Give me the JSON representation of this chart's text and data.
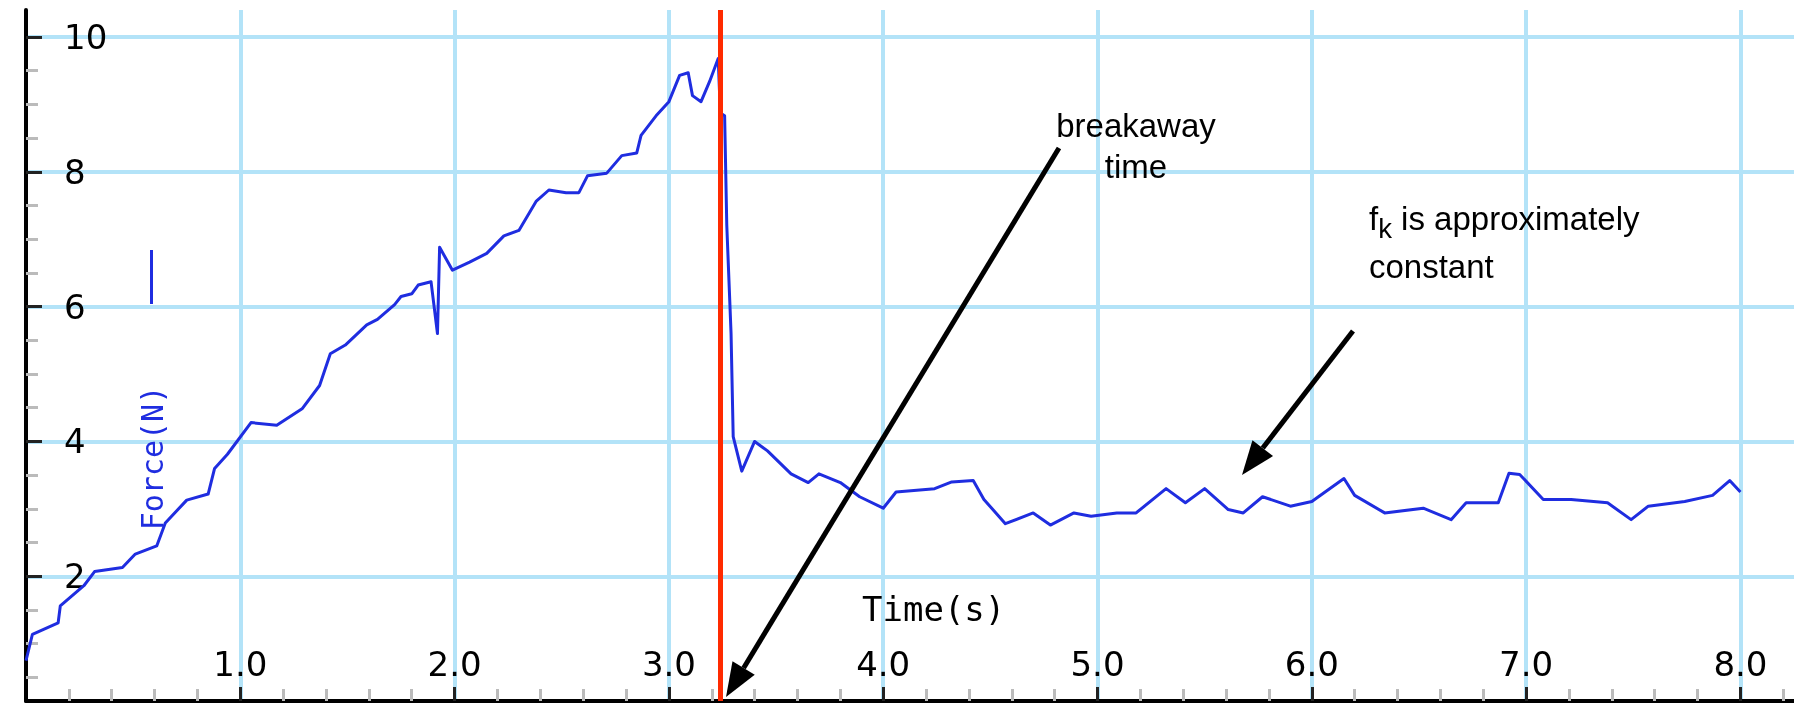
{
  "chart_data": {
    "type": "line",
    "xlabel": "Time(s)",
    "ylabel": "Force(N)",
    "color": "#1f2de0",
    "x": [
      0,
      0.03,
      0.15,
      0.16,
      0.27,
      0.32,
      0.45,
      0.51,
      0.61,
      0.65,
      0.75,
      0.85,
      0.88,
      0.94,
      1.05,
      1.17,
      1.29,
      1.37,
      1.42,
      1.49,
      1.59,
      1.64,
      1.72,
      1.75,
      1.8,
      1.83,
      1.89,
      1.92,
      1.93,
      1.99,
      2.07,
      2.15,
      2.23,
      2.3,
      2.38,
      2.44,
      2.52,
      2.58,
      2.62,
      2.71,
      2.78,
      2.85,
      2.87,
      2.94,
      3,
      3.05,
      3.09,
      3.11,
      3.15,
      3.19,
      3.23,
      3.24,
      3.26,
      3.27,
      3.29,
      3.3,
      3.34,
      3.4,
      3.46,
      3.57,
      3.65,
      3.7,
      3.8,
      3.89,
      4,
      4.06,
      4.24,
      4.32,
      4.42,
      4.47,
      4.57,
      4.7,
      4.78,
      4.89,
      4.97,
      5.09,
      5.18,
      5.32,
      5.41,
      5.5,
      5.61,
      5.68,
      5.77,
      5.9,
      6,
      6.15,
      6.2,
      6.34,
      6.52,
      6.65,
      6.72,
      6.87,
      6.92,
      6.97,
      7.08,
      7.21,
      7.38,
      7.49,
      7.57,
      7.74,
      7.87,
      7.95,
      8
    ],
    "values": [
      0.75,
      1.14,
      1.31,
      1.56,
      1.86,
      2.07,
      2.13,
      2.33,
      2.45,
      2.79,
      3.13,
      3.22,
      3.6,
      3.81,
      4.28,
      4.24,
      4.49,
      4.83,
      5.3,
      5.43,
      5.73,
      5.81,
      6.03,
      6.15,
      6.19,
      6.32,
      6.37,
      5.6,
      6.88,
      6.54,
      6.66,
      6.79,
      7.05,
      7.13,
      7.56,
      7.73,
      7.69,
      7.69,
      7.94,
      7.98,
      8.24,
      8.28,
      8.54,
      8.83,
      9.04,
      9.43,
      9.47,
      9.13,
      9.04,
      9.34,
      9.68,
      8.87,
      8.83,
      7.21,
      5.6,
      4.07,
      3.56,
      4,
      3.86,
      3.52,
      3.39,
      3.52,
      3.39,
      3.18,
      3.01,
      3.25,
      3.3,
      3.4,
      3.42,
      3.14,
      2.78,
      2.94,
      2.76,
      2.94,
      2.89,
      2.94,
      2.94,
      3.3,
      3.09,
      3.3,
      2.99,
      2.94,
      3.18,
      3.04,
      3.11,
      3.45,
      3.2,
      2.94,
      3.01,
      2.84,
      3.09,
      3.09,
      3.53,
      3.51,
      3.14,
      3.14,
      3.09,
      2.84,
      3.04,
      3.11,
      3.2,
      3.42,
      3.25
    ],
    "xlim": [
      0,
      8.25
    ],
    "ylim": [
      0.15,
      10.4
    ],
    "xticks": [
      {
        "value": 0.2,
        "label": null
      },
      {
        "value": 0.4,
        "label": null
      },
      {
        "value": 0.6,
        "label": null
      },
      {
        "value": 0.8,
        "label": null
      },
      {
        "value": 1,
        "label": "1.0"
      },
      {
        "value": 1.2,
        "label": null
      },
      {
        "value": 1.4,
        "label": null
      },
      {
        "value": 1.6,
        "label": null
      },
      {
        "value": 1.8,
        "label": null
      },
      {
        "value": 2,
        "label": "2.0"
      },
      {
        "value": 2.2,
        "label": null
      },
      {
        "value": 2.4,
        "label": null
      },
      {
        "value": 2.6,
        "label": null
      },
      {
        "value": 2.8,
        "label": null
      },
      {
        "value": 3,
        "label": "3.0"
      },
      {
        "value": 3.2,
        "label": null
      },
      {
        "value": 3.4,
        "label": null
      },
      {
        "value": 3.6,
        "label": null
      },
      {
        "value": 3.8,
        "label": null
      },
      {
        "value": 4,
        "label": "4.0"
      },
      {
        "value": 4.2,
        "label": null
      },
      {
        "value": 4.4,
        "label": null
      },
      {
        "value": 4.6,
        "label": null
      },
      {
        "value": 4.8,
        "label": null
      },
      {
        "value": 5,
        "label": "5.0"
      },
      {
        "value": 5.2,
        "label": null
      },
      {
        "value": 5.4,
        "label": null
      },
      {
        "value": 5.6,
        "label": null
      },
      {
        "value": 5.8,
        "label": null
      },
      {
        "value": 6,
        "label": "6.0"
      },
      {
        "value": 6.2,
        "label": null
      },
      {
        "value": 6.4,
        "label": null
      },
      {
        "value": 6.6,
        "label": null
      },
      {
        "value": 6.8,
        "label": null
      },
      {
        "value": 7,
        "label": "7.0"
      },
      {
        "value": 7.2,
        "label": null
      },
      {
        "value": 7.4,
        "label": null
      },
      {
        "value": 7.6,
        "label": null
      },
      {
        "value": 7.8,
        "label": null
      },
      {
        "value": 8,
        "label": "8.0"
      },
      {
        "value": 8.2,
        "label": null
      }
    ],
    "yticks": [
      {
        "value": 0.5,
        "label": null
      },
      {
        "value": 1,
        "label": null
      },
      {
        "value": 1.5,
        "label": null
      },
      2,
      {
        "value": 2.5,
        "label": null
      },
      {
        "value": 3,
        "label": null
      },
      {
        "value": 3.5,
        "label": null
      },
      4,
      {
        "value": 4.5,
        "label": null
      },
      {
        "value": 5,
        "label": null
      },
      {
        "value": 5.5,
        "label": null
      },
      6,
      {
        "value": 6.5,
        "label": null
      },
      {
        "value": 7,
        "label": null
      },
      {
        "value": 7.5,
        "label": null
      },
      8,
      {
        "value": 8.5,
        "label": null
      },
      {
        "value": 9,
        "label": null
      },
      {
        "value": 9.5,
        "label": null
      },
      10
    ],
    "grid": true,
    "ref_lines": [
      {
        "axis": "x",
        "value": 3.24,
        "color": "#ff2a00"
      }
    ],
    "annotations": [
      "breakaway\ntime",
      "f$_{k}$ is approximately\nconstant"
    ]
  }
}
